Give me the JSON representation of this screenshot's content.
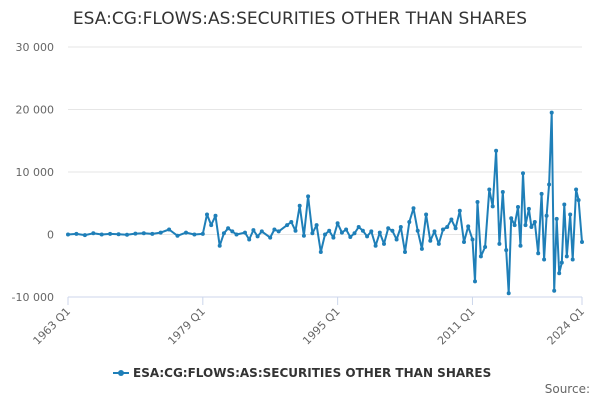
{
  "chart_data": {
    "type": "line",
    "title": "ESA:CG:FLOWS:AS:SECURITIES OTHER THAN SHARES",
    "xlabel": "",
    "ylabel": "",
    "x_tick_labels": [
      "1963 Q1",
      "1979 Q1",
      "1995 Q1",
      "2011 Q1",
      "2024 Q1"
    ],
    "y_tick_labels": [
      "-10 000",
      "0",
      "10 000",
      "20 000",
      "30 000"
    ],
    "y_ticks": [
      -10000,
      0,
      10000,
      20000,
      30000
    ],
    "ylim": [
      -10000,
      30000
    ],
    "x_range": [
      1963.0,
      2024.0
    ],
    "grid": "horizontal",
    "legend_position": "bottom-center",
    "source_label": "Source:",
    "series": [
      {
        "name": "ESA:CG:FLOWS:AS:SECURITIES OTHER THAN SHARES",
        "color": "#1f7fb8",
        "points": [
          [
            1963.0,
            0
          ],
          [
            1964.0,
            100
          ],
          [
            1965.0,
            -100
          ],
          [
            1966.0,
            200
          ],
          [
            1967.0,
            0
          ],
          [
            1968.0,
            100
          ],
          [
            1969.0,
            50
          ],
          [
            1970.0,
            -50
          ],
          [
            1971.0,
            150
          ],
          [
            1972.0,
            200
          ],
          [
            1973.0,
            100
          ],
          [
            1974.0,
            300
          ],
          [
            1975.0,
            800
          ],
          [
            1976.0,
            -200
          ],
          [
            1977.0,
            300
          ],
          [
            1978.0,
            0
          ],
          [
            1979.0,
            100
          ],
          [
            1979.5,
            3200
          ],
          [
            1980.0,
            1500
          ],
          [
            1980.5,
            3000
          ],
          [
            1981.0,
            -1800
          ],
          [
            1981.5,
            200
          ],
          [
            1982.0,
            1000
          ],
          [
            1982.5,
            500
          ],
          [
            1983.0,
            0
          ],
          [
            1984.0,
            300
          ],
          [
            1984.5,
            -800
          ],
          [
            1985.0,
            700
          ],
          [
            1985.5,
            -300
          ],
          [
            1986.0,
            500
          ],
          [
            1987.0,
            -500
          ],
          [
            1987.5,
            800
          ],
          [
            1988.0,
            500
          ],
          [
            1989.0,
            1500
          ],
          [
            1989.5,
            2000
          ],
          [
            1990.0,
            600
          ],
          [
            1990.5,
            4600
          ],
          [
            1991.0,
            -200
          ],
          [
            1991.5,
            6100
          ],
          [
            1992.0,
            200
          ],
          [
            1992.5,
            1500
          ],
          [
            1993.0,
            -2800
          ],
          [
            1993.5,
            0
          ],
          [
            1994.0,
            600
          ],
          [
            1994.5,
            -500
          ],
          [
            1995.0,
            1800
          ],
          [
            1995.5,
            300
          ],
          [
            1996.0,
            800
          ],
          [
            1996.5,
            -400
          ],
          [
            1997.0,
            200
          ],
          [
            1997.5,
            1200
          ],
          [
            1998.0,
            600
          ],
          [
            1998.5,
            -300
          ],
          [
            1999.0,
            500
          ],
          [
            1999.5,
            -1800
          ],
          [
            2000.0,
            300
          ],
          [
            2000.5,
            -1500
          ],
          [
            2001.0,
            1000
          ],
          [
            2001.5,
            600
          ],
          [
            2002.0,
            -800
          ],
          [
            2002.5,
            1200
          ],
          [
            2003.0,
            -2800
          ],
          [
            2003.5,
            2000
          ],
          [
            2004.0,
            4200
          ],
          [
            2004.5,
            600
          ],
          [
            2005.0,
            -2300
          ],
          [
            2005.5,
            3200
          ],
          [
            2006.0,
            -1000
          ],
          [
            2006.5,
            500
          ],
          [
            2007.0,
            -1500
          ],
          [
            2007.5,
            800
          ],
          [
            2008.0,
            1200
          ],
          [
            2008.5,
            2400
          ],
          [
            2009.0,
            1000
          ],
          [
            2009.5,
            3800
          ],
          [
            2010.0,
            -1200
          ],
          [
            2010.5,
            1300
          ],
          [
            2011.0,
            -800
          ],
          [
            2011.3,
            -7500
          ],
          [
            2011.6,
            5200
          ],
          [
            2012.0,
            -3500
          ],
          [
            2012.5,
            -2000
          ],
          [
            2013.0,
            7200
          ],
          [
            2013.4,
            4500
          ],
          [
            2013.8,
            13400
          ],
          [
            2014.2,
            -1500
          ],
          [
            2014.6,
            6800
          ],
          [
            2015.0,
            -2500
          ],
          [
            2015.3,
            -9400
          ],
          [
            2015.6,
            2600
          ],
          [
            2016.0,
            1500
          ],
          [
            2016.4,
            4400
          ],
          [
            2016.7,
            -1800
          ],
          [
            2017.0,
            9800
          ],
          [
            2017.3,
            1500
          ],
          [
            2017.7,
            4100
          ],
          [
            2018.0,
            1200
          ],
          [
            2018.4,
            2000
          ],
          [
            2018.8,
            -3000
          ],
          [
            2019.2,
            6500
          ],
          [
            2019.5,
            -4000
          ],
          [
            2019.8,
            3000
          ],
          [
            2020.1,
            8000
          ],
          [
            2020.4,
            19500
          ],
          [
            2020.7,
            -9000
          ],
          [
            2021.0,
            2500
          ],
          [
            2021.3,
            -6200
          ],
          [
            2021.6,
            -4500
          ],
          [
            2021.9,
            4800
          ],
          [
            2022.2,
            -3500
          ],
          [
            2022.6,
            3200
          ],
          [
            2022.9,
            -4000
          ],
          [
            2023.3,
            7200
          ],
          [
            2023.6,
            5500
          ],
          [
            2024.0,
            -1200
          ]
        ]
      }
    ]
  }
}
